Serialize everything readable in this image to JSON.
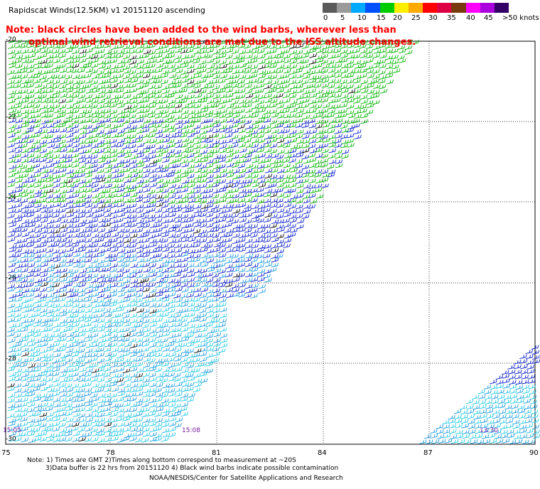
{
  "title": "Rapidscat Winds(12.5KM) v1 20151120 ascending",
  "note_red": [
    "Note: black circles have been added to the wind barbs, wherever less than",
    "optimal wind retrieval conditions are met due to the ISS altitude changes."
  ],
  "colorbar": {
    "colors": [
      "#5a5a5a",
      "#9a9a9a",
      "#00aaff",
      "#0050ff",
      "#00cc00",
      "#ffee00",
      "#ffaa00",
      "#ff0000",
      "#dd0044",
      "#7a3a10",
      "#ff00ff",
      "#aa00dd",
      "#330066"
    ],
    "labels": [
      "0",
      "5",
      "10",
      "15",
      "20",
      "25",
      "30",
      "35",
      "40",
      "45",
      ">50 knots"
    ]
  },
  "lat_labels": [
    "-20",
    "-22",
    "-24",
    "-26",
    "-28",
    "-30"
  ],
  "lon_labels": [
    "75",
    "78",
    "81",
    "84",
    "87",
    "90"
  ],
  "time_labels": [
    "15:05",
    "15:08",
    "13:30"
  ],
  "footnote": [
    "Note: 1) Times are GMT 2)Times along bottom correspond to measurement at ~20S",
    "3)Data buffer is 22 hrs from 20151120 4) Black wind barbs indicate possible contamination"
  ],
  "credit": "NOAA/NESDIS/Center for Satellite Applications and Research",
  "legend_colors": {
    "green": "#00b400",
    "blue": "#0a1ecc",
    "lightblue": "#1a9ae0",
    "cyan": "#22c8e6",
    "black": "#000000"
  }
}
